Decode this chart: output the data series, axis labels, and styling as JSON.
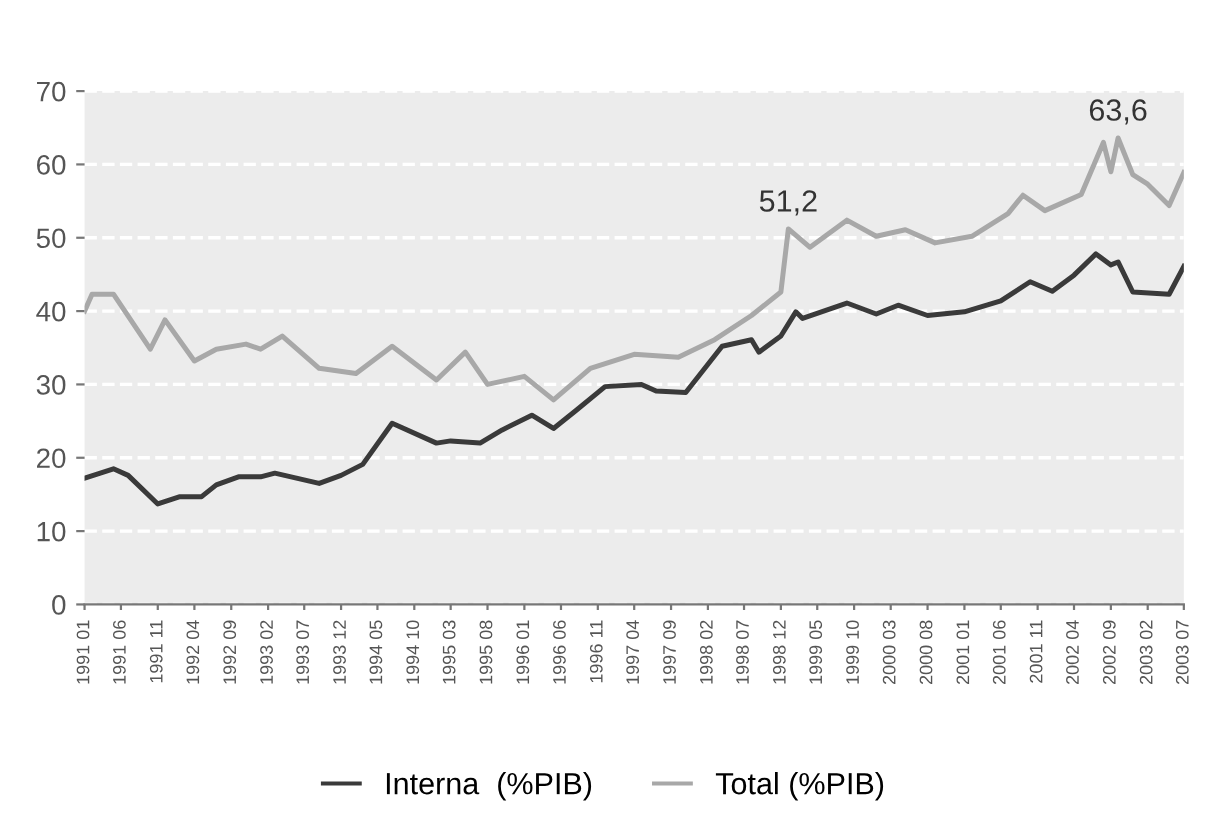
{
  "chart_data": {
    "type": "line",
    "series": [
      {
        "name": "Interna  (%PIB)",
        "color": "#3a3a3a",
        "x": [
          "1991-01",
          "1991-05",
          "1991-07",
          "1991-11",
          "1992-02",
          "1992-05",
          "1992-07",
          "1992-10",
          "1993-01",
          "1993-03",
          "1993-09",
          "1993-12",
          "1994-03",
          "1994-07",
          "1995-01",
          "1995-03",
          "1995-07",
          "1995-10",
          "1996-02",
          "1996-05",
          "1996-08",
          "1996-12",
          "1997-05",
          "1997-07",
          "1997-11",
          "1998-04",
          "1998-08",
          "1998-09",
          "1998-12",
          "1999-02",
          "1999-03",
          "1999-09",
          "2000-01",
          "2000-04",
          "2000-08",
          "2001-01",
          "2001-06",
          "2001-10",
          "2002-01",
          "2002-04",
          "2002-07",
          "2002-09",
          "2002-10",
          "2002-12",
          "2003-05",
          "2003-07"
        ],
        "values": [
          17.2,
          18.5,
          17.6,
          13.7,
          14.7,
          14.7,
          16.3,
          17.4,
          17.4,
          17.9,
          16.5,
          17.6,
          19.1,
          24.7,
          22,
          22.3,
          22,
          23.8,
          25.8,
          24,
          26.4,
          29.7,
          30,
          29.1,
          28.9,
          35.2,
          36.1,
          34.4,
          36.6,
          39.9,
          39,
          41.1,
          39.6,
          40.8,
          39.4,
          39.9,
          41.4,
          44,
          42.7,
          44.9,
          47.8,
          46.3,
          46.7,
          42.6,
          42.3,
          46.1
        ]
      },
      {
        "name": "Total (%PIB)",
        "color": "#a8a8a8",
        "x": [
          "1991-01",
          "1991-02",
          "1991-05",
          "1991-10",
          "1991-12",
          "1992-04",
          "1992-07",
          "1992-11",
          "1993-01",
          "1993-04",
          "1993-09",
          "1994-02",
          "1994-07",
          "1995-01",
          "1995-05",
          "1995-08",
          "1996-01",
          "1996-05",
          "1996-10",
          "1997-04",
          "1997-10",
          "1998-03",
          "1998-08",
          "1998-12",
          "1999-01",
          "1999-04",
          "1999-09",
          "2000-01",
          "2000-05",
          "2000-09",
          "2001-02",
          "2001-07",
          "2001-09",
          "2001-12",
          "2002-05",
          "2002-08",
          "2002-09",
          "2002-10",
          "2002-12",
          "2003-02",
          "2003-05",
          "2003-07"
        ],
        "values": [
          40,
          42.3,
          42.3,
          34.8,
          38.8,
          33.2,
          34.8,
          35.5,
          34.8,
          36.6,
          32.2,
          31.5,
          35.2,
          30.6,
          34.4,
          30,
          31.1,
          27.9,
          32.2,
          34.1,
          33.7,
          36.1,
          39.4,
          42.6,
          51.2,
          48.7,
          52.4,
          50.2,
          51.1,
          49.3,
          50.2,
          53.3,
          55.8,
          53.7,
          55.9,
          63,
          59,
          63.6,
          58.6,
          57.3,
          54.4,
          58.9
        ]
      }
    ],
    "annotations": [
      {
        "text": "51,2",
        "x": "1999-01",
        "y": 51.2
      },
      {
        "text": "63,6",
        "x": "2002-10",
        "y": 63.6
      }
    ],
    "xlim": [
      "1991-01",
      "2003-07"
    ],
    "xticks": [
      {
        "value": "1991-01",
        "label": "1991 01"
      },
      {
        "value": "1991-06",
        "label": "1991 06"
      },
      {
        "value": "1991-11",
        "label": "1991 11"
      },
      {
        "value": "1992-04",
        "label": "1992 04"
      },
      {
        "value": "1992-09",
        "label": "1992 09"
      },
      {
        "value": "1993-02",
        "label": "1993 02"
      },
      {
        "value": "1993-07",
        "label": "1993 07"
      },
      {
        "value": "1993-12",
        "label": "1993 12"
      },
      {
        "value": "1994-05",
        "label": "1994 05"
      },
      {
        "value": "1994-10",
        "label": "1994 10"
      },
      {
        "value": "1995-03",
        "label": "1995 03"
      },
      {
        "value": "1995-08",
        "label": "1995 08"
      },
      {
        "value": "1996-01",
        "label": "1996 01"
      },
      {
        "value": "1996-06",
        "label": "1996 06"
      },
      {
        "value": "1996-11",
        "label": "1996 11"
      },
      {
        "value": "1997-04",
        "label": "1997 04"
      },
      {
        "value": "1997-09",
        "label": "1997 09"
      },
      {
        "value": "1998-02",
        "label": "1998 02"
      },
      {
        "value": "1998-07",
        "label": "1998 07"
      },
      {
        "value": "1998-12",
        "label": "1998 12"
      },
      {
        "value": "1999-05",
        "label": "1999 05"
      },
      {
        "value": "1999-10",
        "label": "1999 10"
      },
      {
        "value": "2000-03",
        "label": "2000 03"
      },
      {
        "value": "2000-08",
        "label": "2000 08"
      },
      {
        "value": "2001-01",
        "label": "2001 01"
      },
      {
        "value": "2001-06",
        "label": "2001 06"
      },
      {
        "value": "2001-11",
        "label": "2001 11"
      },
      {
        "value": "2002-04",
        "label": "2002 04"
      },
      {
        "value": "2002-09",
        "label": "2002 09"
      },
      {
        "value": "2003-02",
        "label": "2003 02"
      },
      {
        "value": "2003-07",
        "label": "2003 07"
      }
    ],
    "ylim": [
      0,
      70
    ],
    "yticks": [
      0,
      10,
      20,
      30,
      40,
      50,
      60,
      70
    ],
    "grid": "y",
    "legend": "bottom",
    "marker": "none",
    "line_style": "solid"
  }
}
